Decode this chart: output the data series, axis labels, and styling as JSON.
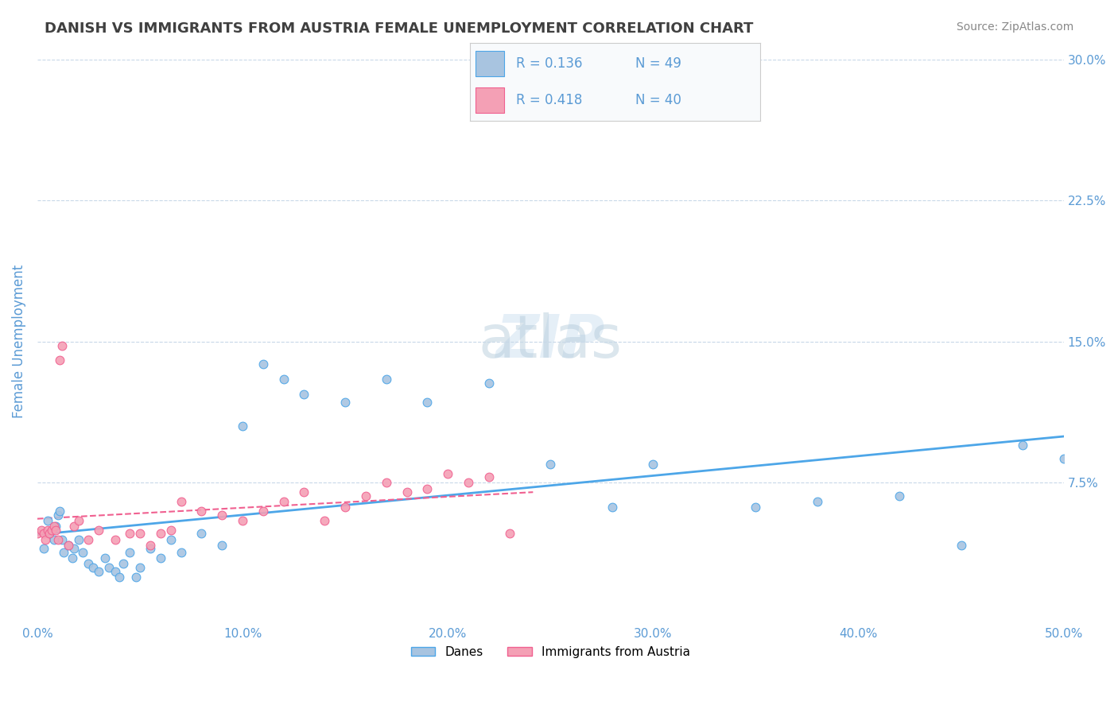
{
  "title": "DANISH VS IMMIGRANTS FROM AUSTRIA FEMALE UNEMPLOYMENT CORRELATION CHART",
  "source": "Source: ZipAtlas.com",
  "xlabel": "",
  "ylabel": "Female Unemployment",
  "watermark_zip": "ZIP",
  "watermark_atlas": "atlas",
  "xlim": [
    0.0,
    0.5
  ],
  "ylim": [
    0.0,
    0.3
  ],
  "xticks": [
    0.0,
    0.1,
    0.2,
    0.3,
    0.4,
    0.5
  ],
  "yticks_right": [
    0.075,
    0.15,
    0.225,
    0.3
  ],
  "ytick_labels_right": [
    "7.5%",
    "15.0%",
    "22.5%",
    "30.0%"
  ],
  "xtick_labels": [
    "0.0%",
    "10.0%",
    "20.0%",
    "30.0%",
    "40.0%",
    "50.0%"
  ],
  "legend_label1": "Danes",
  "legend_label2": "Immigrants from Austria",
  "R1": 0.136,
  "N1": 49,
  "R2": 0.418,
  "N2": 40,
  "danes_color": "#a8c4e0",
  "austria_color": "#f4a0b5",
  "danes_edge_color": "#4da6e8",
  "austria_edge_color": "#f06090",
  "danes_trend_color": "#4da6e8",
  "austria_trend_color": "#f06090",
  "background_color": "#ffffff",
  "grid_color": "#c8d8e8",
  "axis_label_color": "#5b9bd5",
  "title_color": "#404040",
  "danes_x": [
    0.003,
    0.005,
    0.006,
    0.007,
    0.008,
    0.009,
    0.01,
    0.011,
    0.012,
    0.013,
    0.015,
    0.017,
    0.018,
    0.02,
    0.022,
    0.025,
    0.027,
    0.03,
    0.033,
    0.035,
    0.038,
    0.04,
    0.042,
    0.045,
    0.048,
    0.05,
    0.055,
    0.06,
    0.065,
    0.07,
    0.08,
    0.09,
    0.1,
    0.11,
    0.12,
    0.13,
    0.15,
    0.17,
    0.19,
    0.22,
    0.25,
    0.28,
    0.3,
    0.35,
    0.38,
    0.42,
    0.45,
    0.48,
    0.5
  ],
  "danes_y": [
    0.04,
    0.055,
    0.048,
    0.05,
    0.045,
    0.052,
    0.058,
    0.06,
    0.045,
    0.038,
    0.042,
    0.035,
    0.04,
    0.045,
    0.038,
    0.032,
    0.03,
    0.028,
    0.035,
    0.03,
    0.028,
    0.025,
    0.032,
    0.038,
    0.025,
    0.03,
    0.04,
    0.035,
    0.045,
    0.038,
    0.048,
    0.042,
    0.105,
    0.138,
    0.13,
    0.122,
    0.118,
    0.13,
    0.118,
    0.128,
    0.085,
    0.062,
    0.085,
    0.062,
    0.065,
    0.068,
    0.042,
    0.095,
    0.088
  ],
  "austria_x": [
    0.0,
    0.002,
    0.003,
    0.004,
    0.005,
    0.006,
    0.007,
    0.008,
    0.009,
    0.01,
    0.011,
    0.012,
    0.015,
    0.018,
    0.02,
    0.025,
    0.03,
    0.038,
    0.045,
    0.05,
    0.055,
    0.06,
    0.065,
    0.07,
    0.08,
    0.09,
    0.1,
    0.11,
    0.12,
    0.13,
    0.14,
    0.15,
    0.16,
    0.17,
    0.18,
    0.19,
    0.2,
    0.21,
    0.22,
    0.23
  ],
  "austria_y": [
    0.048,
    0.05,
    0.048,
    0.045,
    0.05,
    0.048,
    0.05,
    0.052,
    0.05,
    0.045,
    0.14,
    0.148,
    0.042,
    0.052,
    0.055,
    0.045,
    0.05,
    0.045,
    0.048,
    0.048,
    0.042,
    0.048,
    0.05,
    0.065,
    0.06,
    0.058,
    0.055,
    0.06,
    0.065,
    0.07,
    0.055,
    0.062,
    0.068,
    0.075,
    0.07,
    0.072,
    0.08,
    0.075,
    0.078,
    0.048
  ]
}
